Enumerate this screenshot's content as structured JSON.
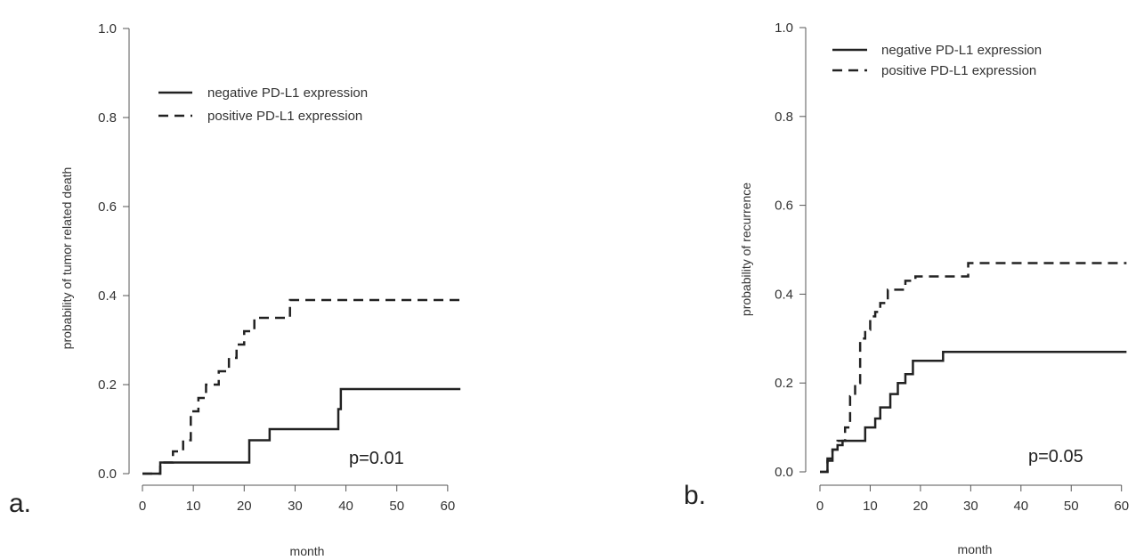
{
  "chart_data": [
    {
      "type": "line",
      "panel_label": "a.",
      "xlabel": "month",
      "ylabel": "probability of tumor related death",
      "xlim": [
        0,
        63
      ],
      "ylim": [
        0,
        1.0
      ],
      "xticks": [
        0,
        10,
        20,
        30,
        40,
        50,
        60
      ],
      "yticks": [
        0.0,
        0.2,
        0.4,
        0.6,
        0.8,
        1.0
      ],
      "ytick_labels": [
        "0.0",
        "0.2",
        "0.4",
        "0.6",
        "0.8",
        "1.0"
      ],
      "legend_position": "top-center",
      "annotation": "p=0.01",
      "series": [
        {
          "name": "negative PD-L1 expression",
          "style": "solid",
          "x": [
            0,
            3.5,
            21,
            25,
            38.5,
            39,
            62.5
          ],
          "y": [
            0.0,
            0.025,
            0.075,
            0.1,
            0.145,
            0.19,
            0.19
          ]
        },
        {
          "name": "positive PD-L1 expression",
          "style": "dashed",
          "x": [
            0,
            3.5,
            6,
            8,
            9.5,
            11,
            12.5,
            15,
            17,
            18.5,
            20,
            22,
            29,
            62.5
          ],
          "y": [
            0.0,
            0.025,
            0.05,
            0.075,
            0.14,
            0.17,
            0.2,
            0.23,
            0.26,
            0.29,
            0.32,
            0.35,
            0.39,
            0.39
          ]
        }
      ]
    },
    {
      "type": "line",
      "panel_label": "b.",
      "xlabel": "month",
      "ylabel": "probability of recurrence",
      "xlim": [
        0,
        62
      ],
      "ylim": [
        0,
        1.0
      ],
      "xticks": [
        0,
        10,
        20,
        30,
        40,
        50,
        60
      ],
      "yticks": [
        0.0,
        0.2,
        0.4,
        0.6,
        0.8,
        1.0
      ],
      "ytick_labels": [
        "0.0",
        "0.2",
        "0.4",
        "0.6",
        "0.8",
        "1.0"
      ],
      "legend_position": "top-left",
      "annotation": "p=0.05",
      "series": [
        {
          "name": "negative PD-L1 expression",
          "style": "solid",
          "x": [
            0,
            1.5,
            2.5,
            3.5,
            4.5,
            9,
            11,
            12,
            14,
            15.5,
            17,
            18.5,
            24.5,
            61
          ],
          "y": [
            0.0,
            0.025,
            0.05,
            0.06,
            0.07,
            0.1,
            0.12,
            0.145,
            0.175,
            0.2,
            0.22,
            0.25,
            0.27,
            0.27
          ]
        },
        {
          "name": "positive PD-L1 expression",
          "style": "dashed",
          "x": [
            0,
            1.5,
            2.5,
            3.5,
            5,
            6,
            7,
            8,
            9,
            10,
            11,
            12,
            13.5,
            17,
            19,
            29.5,
            61
          ],
          "y": [
            0.0,
            0.03,
            0.05,
            0.07,
            0.1,
            0.17,
            0.2,
            0.3,
            0.32,
            0.35,
            0.36,
            0.38,
            0.41,
            0.43,
            0.44,
            0.47,
            0.47
          ]
        }
      ]
    }
  ]
}
